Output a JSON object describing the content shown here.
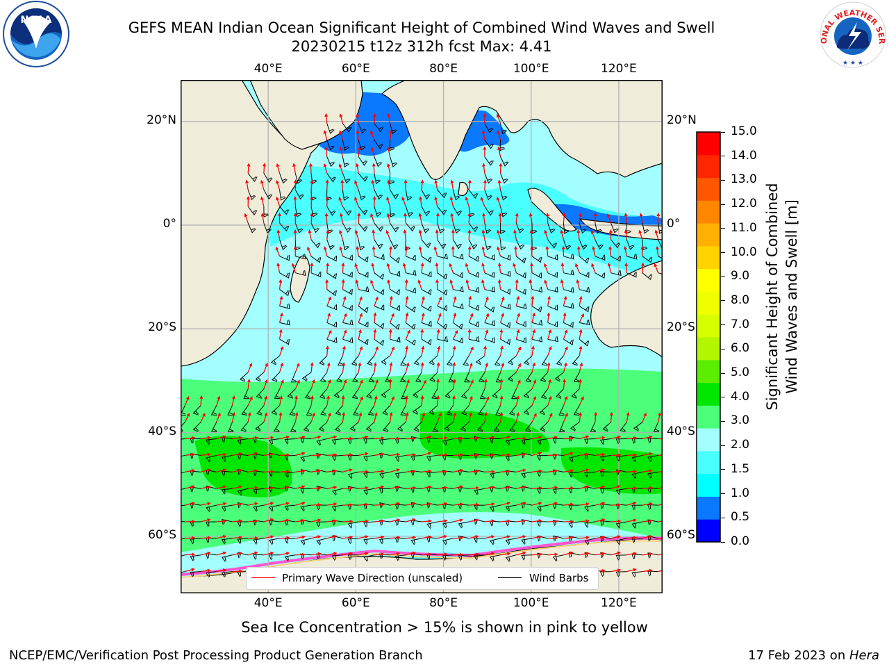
{
  "title": {
    "line1": "GEFS MEAN Indian Ocean Significant Height of Combined Wind Waves and Swell",
    "line2": "20230215 t12z 312h fcst   Max: 4.41"
  },
  "logos": {
    "left": {
      "text": "NOAA",
      "icon": "noaa-logo-icon",
      "ring_text": "NATIONAL OCEANIC AND ATMOSPHERIC ADMINISTRATION · U.S. DEPARTMENT OF COMMERCE"
    },
    "right": {
      "text": "NATIONAL WEATHER SERVICE",
      "icon": "nws-logo-icon"
    }
  },
  "map": {
    "lon_ticks": [
      "40°E",
      "60°E",
      "80°E",
      "100°E",
      "120°E"
    ],
    "lat_ticks": [
      "20°N",
      "0°",
      "20°S",
      "40°S",
      "60°S"
    ],
    "lon_values": [
      40,
      60,
      80,
      100,
      120
    ],
    "lat_values": [
      20,
      0,
      -20,
      -40,
      -60
    ],
    "extent": {
      "lon_min": 20,
      "lon_max": 130,
      "lat_min": -71,
      "lat_max": 28
    },
    "colors": {
      "land": "#efedda",
      "coast": "#000000",
      "grid": "#b0b0b0"
    }
  },
  "legend": {
    "primary_wave_label": "Primary Wave Direction (unscaled)",
    "wind_barbs_label": "Wind Barbs",
    "primary_wave_color": "#ff0000",
    "wind_barbs_color": "#000000"
  },
  "colorbar": {
    "label_line1": "Significant Height of Combined",
    "label_line2": "Wind Waves and Swell [m]",
    "ticks": [
      "0.0",
      "0.5",
      "1.0",
      "1.5",
      "2.0",
      "3.0",
      "4.0",
      "5.0",
      "6.0",
      "7.0",
      "8.0",
      "9.0",
      "10.0",
      "11.0",
      "12.0",
      "13.0",
      "14.0",
      "15.0"
    ],
    "colors": [
      "#0000ff",
      "#0a78ff",
      "#00ffff",
      "#49ffff",
      "#a3ffff",
      "#4bff7b",
      "#00e600",
      "#5bee00",
      "#b2f600",
      "#d6ff00",
      "#f0ff00",
      "#ffff00",
      "#ffd200",
      "#ffb000",
      "#ff8600",
      "#ff5600",
      "#ff2600",
      "#ff0000"
    ]
  },
  "footer": {
    "note": "Sea Ice Concentration > 15% is shown in pink to yellow",
    "credit": "NCEP/EMC/Verification Post Processing Product Generation Branch",
    "date": "17 Feb 2023 on ",
    "machine": "Hera"
  }
}
